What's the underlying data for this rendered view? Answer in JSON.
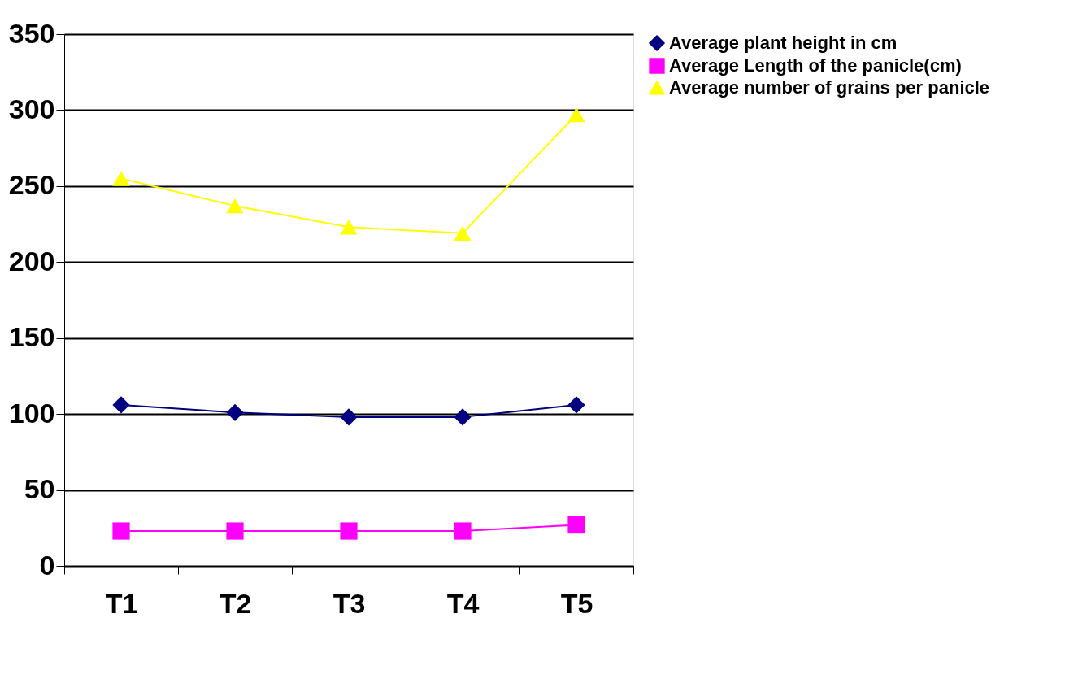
{
  "chart_data": {
    "type": "line",
    "categories": [
      "T1",
      "T2",
      "T3",
      "T4",
      "T5"
    ],
    "series": [
      {
        "name": "Average plant height in cm",
        "color": "#000080",
        "marker": "diamond",
        "values": [
          106,
          101,
          98,
          98,
          106
        ]
      },
      {
        "name": "Average Length of the panicle(cm)",
        "color": "#ff00ff",
        "marker": "square",
        "values": [
          23,
          23,
          23,
          23,
          27
        ]
      },
      {
        "name": "Average number of grains per panicle",
        "color": "#ffff00",
        "marker": "triangle",
        "values": [
          255,
          237,
          223,
          219,
          297
        ]
      }
    ],
    "ylim": [
      0,
      350
    ],
    "yticks": [
      0,
      50,
      100,
      150,
      200,
      250,
      300,
      350
    ],
    "grid": "y",
    "legend": "right"
  }
}
